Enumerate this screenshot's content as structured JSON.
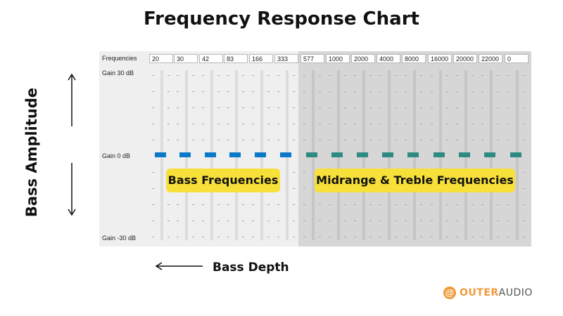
{
  "title": "Frequency Response Chart",
  "y_axis_label": "Bass Amplitude",
  "x_axis_label": "Bass Depth",
  "eq": {
    "frequencies_label": "Frequencies",
    "frequencies": [
      "20",
      "30",
      "42",
      "83",
      "166",
      "333",
      "577",
      "1000",
      "2000",
      "4000",
      "8000",
      "16000",
      "20000",
      "22000",
      "0"
    ],
    "gain_top": "Gain 30 dB",
    "gain_mid": "Gain 0 dB",
    "gain_bottom": "Gain -30 dB"
  },
  "bands": {
    "bass_label": "Bass Frequencies",
    "mid_treble_label": "Midrange & Treble Frequencies"
  },
  "colors": {
    "bass_dash": "#0b78c8",
    "mid_treble_dash": "#2e8b82",
    "highlight": "#f7e03a",
    "brand": "#f29a3a"
  },
  "logo": {
    "part1": "OUTER",
    "part2": "AUDIO",
    "icon": "at-sign-icon"
  }
}
